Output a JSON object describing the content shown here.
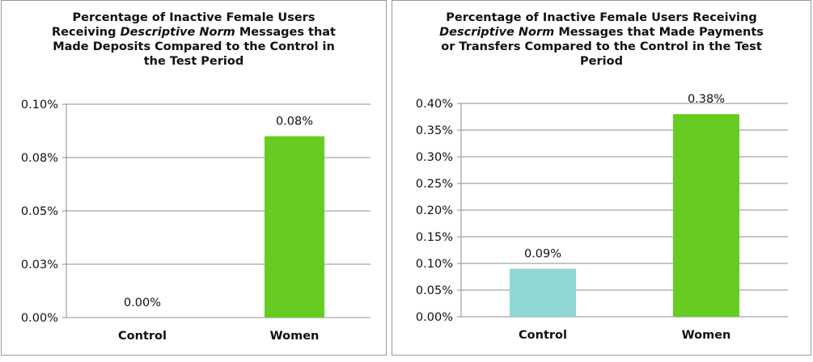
{
  "chart_data": [
    {
      "type": "bar",
      "title_lines": [
        [
          {
            "text": "Percentage of Inactive Female Users",
            "italic": false
          }
        ],
        [
          {
            "text": "Receiving ",
            "italic": false
          },
          {
            "text": "Descriptive Norm",
            "italic": true
          },
          {
            "text": " Messages that",
            "italic": false
          }
        ],
        [
          {
            "text": "Made Deposits Compared to the Control in",
            "italic": false
          }
        ],
        [
          {
            "text": "the Test Period",
            "italic": false
          }
        ]
      ],
      "categories": [
        "Control",
        "Women"
      ],
      "values": [
        0.0,
        0.085
      ],
      "value_labels": [
        "0.00%",
        "0.08%"
      ],
      "bar_colors": [
        "#8fd7d2",
        "#66cc22"
      ],
      "ylim": [
        0,
        0.1
      ],
      "yticks": [
        0,
        0.025,
        0.05,
        0.075,
        0.1
      ],
      "ytick_labels": [
        "0.00%",
        "0.03%",
        "0.05%",
        "0.08%",
        "0.10%"
      ],
      "grid": true,
      "xlabel": "",
      "ylabel": ""
    },
    {
      "type": "bar",
      "title_lines": [
        [
          {
            "text": "Percentage of Inactive Female Users Receiving",
            "italic": false
          }
        ],
        [
          {
            "text": "Descriptive Norm",
            "italic": true
          },
          {
            "text": " Messages that Made Payments",
            "italic": false
          }
        ],
        [
          {
            "text": "or Transfers Compared to the Control in the Test",
            "italic": false
          }
        ],
        [
          {
            "text": "Period",
            "italic": false
          }
        ]
      ],
      "categories": [
        "Control",
        "Women"
      ],
      "values": [
        0.09,
        0.38
      ],
      "value_labels": [
        "0.09%",
        "0.38%"
      ],
      "bar_colors": [
        "#8fd7d2",
        "#66cc22"
      ],
      "ylim": [
        0,
        0.4
      ],
      "yticks": [
        0,
        0.05,
        0.1,
        0.15,
        0.2,
        0.25,
        0.3,
        0.35,
        0.4
      ],
      "ytick_labels": [
        "0.00%",
        "0.05%",
        "0.10%",
        "0.15%",
        "0.20%",
        "0.25%",
        "0.30%",
        "0.35%",
        "0.40%"
      ],
      "grid": true,
      "xlabel": "",
      "ylabel": ""
    }
  ]
}
